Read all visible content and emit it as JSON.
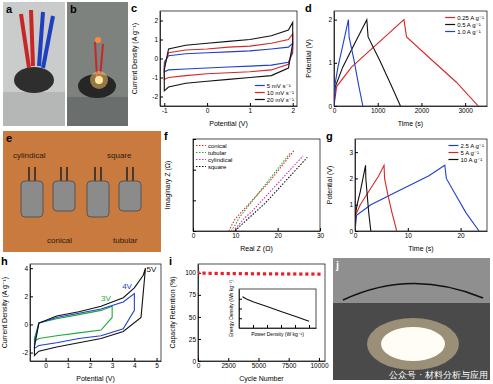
{
  "panels": [
    {
      "label": "a"
    },
    {
      "label": "b"
    },
    {
      "label": "e",
      "texts": [
        "cylindical",
        "square",
        "conical",
        "tubular"
      ]
    },
    {
      "label": "j"
    }
  ],
  "watermark": "公众号 · 材料分析与应用",
  "chart_data": [
    {
      "type": "line",
      "title": "c",
      "xlabel": "Potential (V)",
      "ylabel": "Current Density (A g⁻¹)",
      "x": [
        -1,
        -0.9,
        -0.5,
        0,
        0.5,
        1,
        1.5,
        1.9,
        2,
        2,
        1.9,
        1.5,
        1,
        0.5,
        0,
        -0.5,
        -0.9,
        -1,
        -1
      ],
      "xlim": [
        -1.1,
        2.1
      ],
      "xticks": [
        -1,
        0,
        1,
        2
      ],
      "ylim": [
        -2.5,
        2.5
      ],
      "yticks": [
        -2,
        -1,
        0,
        1,
        2
      ],
      "legend": "lower right",
      "series": [
        {
          "name": "5 mV s⁻¹",
          "color": "#1f3fd1",
          "values": [
            -0.2,
            0.15,
            0.25,
            0.3,
            0.35,
            0.4,
            0.5,
            0.6,
            0.8,
            0.3,
            -0.2,
            -0.35,
            -0.4,
            -0.45,
            -0.5,
            -0.55,
            -0.6,
            -0.7,
            -0.2
          ]
        },
        {
          "name": "10 mV s⁻¹",
          "color": "#d62728",
          "values": [
            -0.4,
            0.3,
            0.45,
            0.5,
            0.6,
            0.65,
            0.8,
            1.0,
            1.3,
            0.5,
            -0.3,
            -0.6,
            -0.7,
            -0.75,
            -0.8,
            -0.9,
            -1.0,
            -1.1,
            -0.4
          ]
        },
        {
          "name": "20 mV s⁻¹",
          "color": "#111111",
          "values": [
            -0.6,
            0.5,
            0.7,
            0.8,
            0.9,
            1.0,
            1.2,
            1.5,
            1.9,
            0.8,
            -0.5,
            -0.9,
            -1.0,
            -1.1,
            -1.2,
            -1.3,
            -1.5,
            -1.7,
            -0.6
          ]
        }
      ]
    },
    {
      "type": "line",
      "title": "d",
      "xlabel": "Time (s)",
      "ylabel": "Potential (V)",
      "xlim": [
        0,
        3500
      ],
      "xticks": [
        0,
        1000,
        2000,
        3000
      ],
      "ylim": [
        0,
        2.2
      ],
      "yticks": [
        0,
        1,
        2
      ],
      "legend": "upper right",
      "series": [
        {
          "name": "0.25 A g⁻¹",
          "color": "#d62728",
          "x": [
            0,
            60,
            400,
            1000,
            1600,
            1660,
            2200,
            2800,
            3300
          ],
          "values": [
            0,
            0.45,
            0.9,
            1.45,
            2.0,
            1.6,
            1.1,
            0.55,
            0
          ]
        },
        {
          "name": "0.5 A g⁻¹",
          "color": "#111111",
          "x": [
            0,
            30,
            200,
            450,
            750,
            780,
            1050,
            1300,
            1520
          ],
          "values": [
            0,
            0.45,
            0.9,
            1.4,
            2.0,
            1.6,
            1.05,
            0.5,
            0
          ]
        },
        {
          "name": "1.0 A g⁻¹",
          "color": "#1f3fd1",
          "x": [
            0,
            15,
            90,
            200,
            330,
            345,
            460,
            560,
            660
          ],
          "values": [
            0,
            0.45,
            0.9,
            1.4,
            2.0,
            1.6,
            1.05,
            0.5,
            0
          ]
        }
      ]
    },
    {
      "type": "line",
      "title": "f",
      "xlabel": "Real Z (Ω)",
      "ylabel": "Imaginary Z (Ω)",
      "xlim": [
        0,
        30
      ],
      "xticks": [
        0,
        10,
        20,
        30
      ],
      "ylim": [
        0,
        6
      ],
      "yticks": [
        0,
        2,
        4,
        6
      ],
      "tick_labels": "x",
      "legend": "upper left",
      "series": [
        {
          "name": "conical",
          "color": "#e8202a",
          "line_style": "dotted",
          "x": [
            8.5,
            9,
            10,
            12,
            14,
            16,
            18,
            20,
            22,
            24
          ],
          "values": [
            0,
            0.3,
            0.8,
            1.4,
            2.0,
            2.6,
            3.2,
            3.9,
            4.6,
            5.3
          ]
        },
        {
          "name": "tubular",
          "color": "#1fa83a",
          "line_style": "dotted",
          "x": [
            9,
            10,
            11,
            13,
            15,
            17,
            19,
            21,
            23
          ],
          "values": [
            0,
            0.4,
            0.9,
            1.6,
            2.3,
            3.0,
            3.7,
            4.4,
            5.1
          ]
        },
        {
          "name": "cylindical",
          "color": "#d62fb4",
          "line_style": "dotted",
          "x": [
            9.5,
            10.5,
            12,
            14,
            16,
            18,
            20,
            22,
            24,
            26
          ],
          "values": [
            0,
            0.3,
            0.8,
            1.3,
            1.9,
            2.5,
            3.1,
            3.7,
            4.3,
            4.9
          ]
        },
        {
          "name": "square",
          "color": "#111111",
          "line_style": "dotted",
          "x": [
            10,
            11,
            13,
            15,
            17,
            19,
            21,
            23,
            25,
            27
          ],
          "values": [
            0,
            0.3,
            0.8,
            1.3,
            1.8,
            2.4,
            3.0,
            3.6,
            4.2,
            4.8
          ]
        }
      ]
    },
    {
      "type": "line",
      "title": "g",
      "xlabel": "Time (s)",
      "ylabel": "Potential (V)",
      "xlim": [
        0,
        25
      ],
      "xticks": [
        0,
        10,
        20
      ],
      "ylim": [
        0,
        3.5
      ],
      "yticks": [
        0,
        1,
        2,
        3
      ],
      "legend": "upper right",
      "series": [
        {
          "name": "2.5 A g⁻¹",
          "color": "#1f3fd1",
          "x": [
            0,
            0.3,
            3,
            8,
            14,
            17,
            17.3,
            19,
            21,
            23.5
          ],
          "values": [
            0,
            0.6,
            1.0,
            1.5,
            2.1,
            2.5,
            2.0,
            1.4,
            0.7,
            0
          ]
        },
        {
          "name": "5 A g⁻¹",
          "color": "#d62728",
          "x": [
            0,
            0.1,
            1,
            2.6,
            4.5,
            5.5,
            5.6,
            6.2,
            7,
            7.9
          ],
          "values": [
            0,
            0.6,
            1.0,
            1.5,
            2.1,
            2.5,
            2.0,
            1.4,
            0.7,
            0
          ]
        },
        {
          "name": "10 A g⁻¹",
          "color": "#111111",
          "x": [
            0,
            0.05,
            0.4,
            1,
            1.6,
            2.0,
            2.05,
            2.3,
            2.6,
            3.0
          ],
          "values": [
            0,
            0.6,
            1.0,
            1.5,
            2.1,
            2.5,
            2.0,
            1.4,
            0.7,
            0
          ]
        }
      ]
    },
    {
      "type": "line",
      "title": "h",
      "xlabel": "Potential (V)",
      "ylabel": "Current Density (A g⁻¹)",
      "xlim": [
        -0.7,
        5.2
      ],
      "xticks": [
        0,
        1,
        2,
        3,
        4,
        5
      ],
      "ylim": [
        -2.6,
        4.3
      ],
      "yticks": [
        -2,
        0,
        2,
        4
      ],
      "annotations": [
        {
          "text": "3V",
          "x": 2.5,
          "y": 1.7,
          "color": "#1fa83a"
        },
        {
          "text": "4V",
          "x": 3.45,
          "y": 2.5,
          "color": "#1f3fd1"
        },
        {
          "text": "5V",
          "x": 4.55,
          "y": 3.7,
          "color": "#111111"
        }
      ],
      "series": [
        {
          "color": "#1fa83a",
          "x": [
            -0.5,
            -0.3,
            0.5,
            1.5,
            2.5,
            3,
            3,
            2.5,
            1.5,
            0.5,
            -0.3,
            -0.5,
            -0.5
          ],
          "values": [
            -1.0,
            0.1,
            0.4,
            0.7,
            1.0,
            1.3,
            0.5,
            -0.4,
            -0.6,
            -0.8,
            -1.0,
            -1.2,
            -1.0
          ]
        },
        {
          "color": "#1f3fd1",
          "x": [
            -0.5,
            -0.3,
            0.5,
            1.5,
            2.5,
            3.5,
            4,
            4,
            3.5,
            2.5,
            1.5,
            0.5,
            -0.3,
            -0.5,
            -0.5
          ],
          "values": [
            -1.3,
            0.1,
            0.5,
            0.8,
            1.1,
            1.6,
            2.2,
            1.0,
            -0.3,
            -0.8,
            -1.0,
            -1.3,
            -1.5,
            -1.7,
            -1.3
          ]
        },
        {
          "color": "#111111",
          "x": [
            -0.5,
            -0.3,
            0.5,
            1.5,
            2.5,
            3.5,
            4,
            4.4,
            4.5,
            4.3,
            3.5,
            2.5,
            1.5,
            0.5,
            -0.3,
            -0.5,
            -0.5
          ],
          "values": [
            -1.6,
            0.1,
            0.6,
            0.9,
            1.3,
            1.9,
            2.6,
            3.5,
            4.0,
            0.5,
            -0.5,
            -1.0,
            -1.3,
            -1.6,
            -1.9,
            -2.2,
            -1.6
          ]
        }
      ]
    },
    {
      "type": "scatter",
      "title": "i",
      "xlabel": "Cycle Number",
      "ylabel": "Capacity Retention (%)",
      "x": [
        0,
        500,
        1000,
        1500,
        2000,
        2500,
        3000,
        3500,
        4000,
        4500,
        5000,
        5500,
        6000,
        6500,
        7000,
        7500,
        8000,
        8500,
        9000,
        9500,
        10000
      ],
      "xlim": [
        0,
        10500
      ],
      "xticks": [
        0,
        2500,
        5000,
        7500,
        10000
      ],
      "ylim": [
        0,
        110
      ],
      "yticks": [
        0,
        25,
        50,
        75,
        100
      ],
      "series": [
        {
          "color": "#e8202a",
          "marker": "square",
          "values": [
            100,
            99.6,
            99.4,
            99.3,
            99.2,
            99.1,
            99.1,
            99.0,
            99.0,
            98.9,
            98.9,
            98.8,
            98.8,
            98.8,
            98.7,
            98.7,
            98.7,
            98.6,
            98.6,
            98.6,
            98.5
          ]
        }
      ],
      "inset": {
        "type": "line",
        "xlabel": "Power Density (W kg⁻¹)",
        "ylabel": "Energy Density (Wh kg⁻¹)",
        "x": [
          500,
          1000,
          2000,
          4000,
          6000,
          8000,
          10000
        ],
        "xlim": [
          0,
          11000
        ],
        "xticks": [
          2000,
          4000,
          6000,
          8000,
          10000
        ],
        "ylim": [
          20,
          60
        ],
        "yticks": [
          30,
          40,
          50
        ],
        "tick_labels": false,
        "series": [
          {
            "color": "#111111",
            "values": [
              52,
              50,
              47,
              42,
              37,
              32,
              27
            ]
          }
        ]
      }
    }
  ]
}
